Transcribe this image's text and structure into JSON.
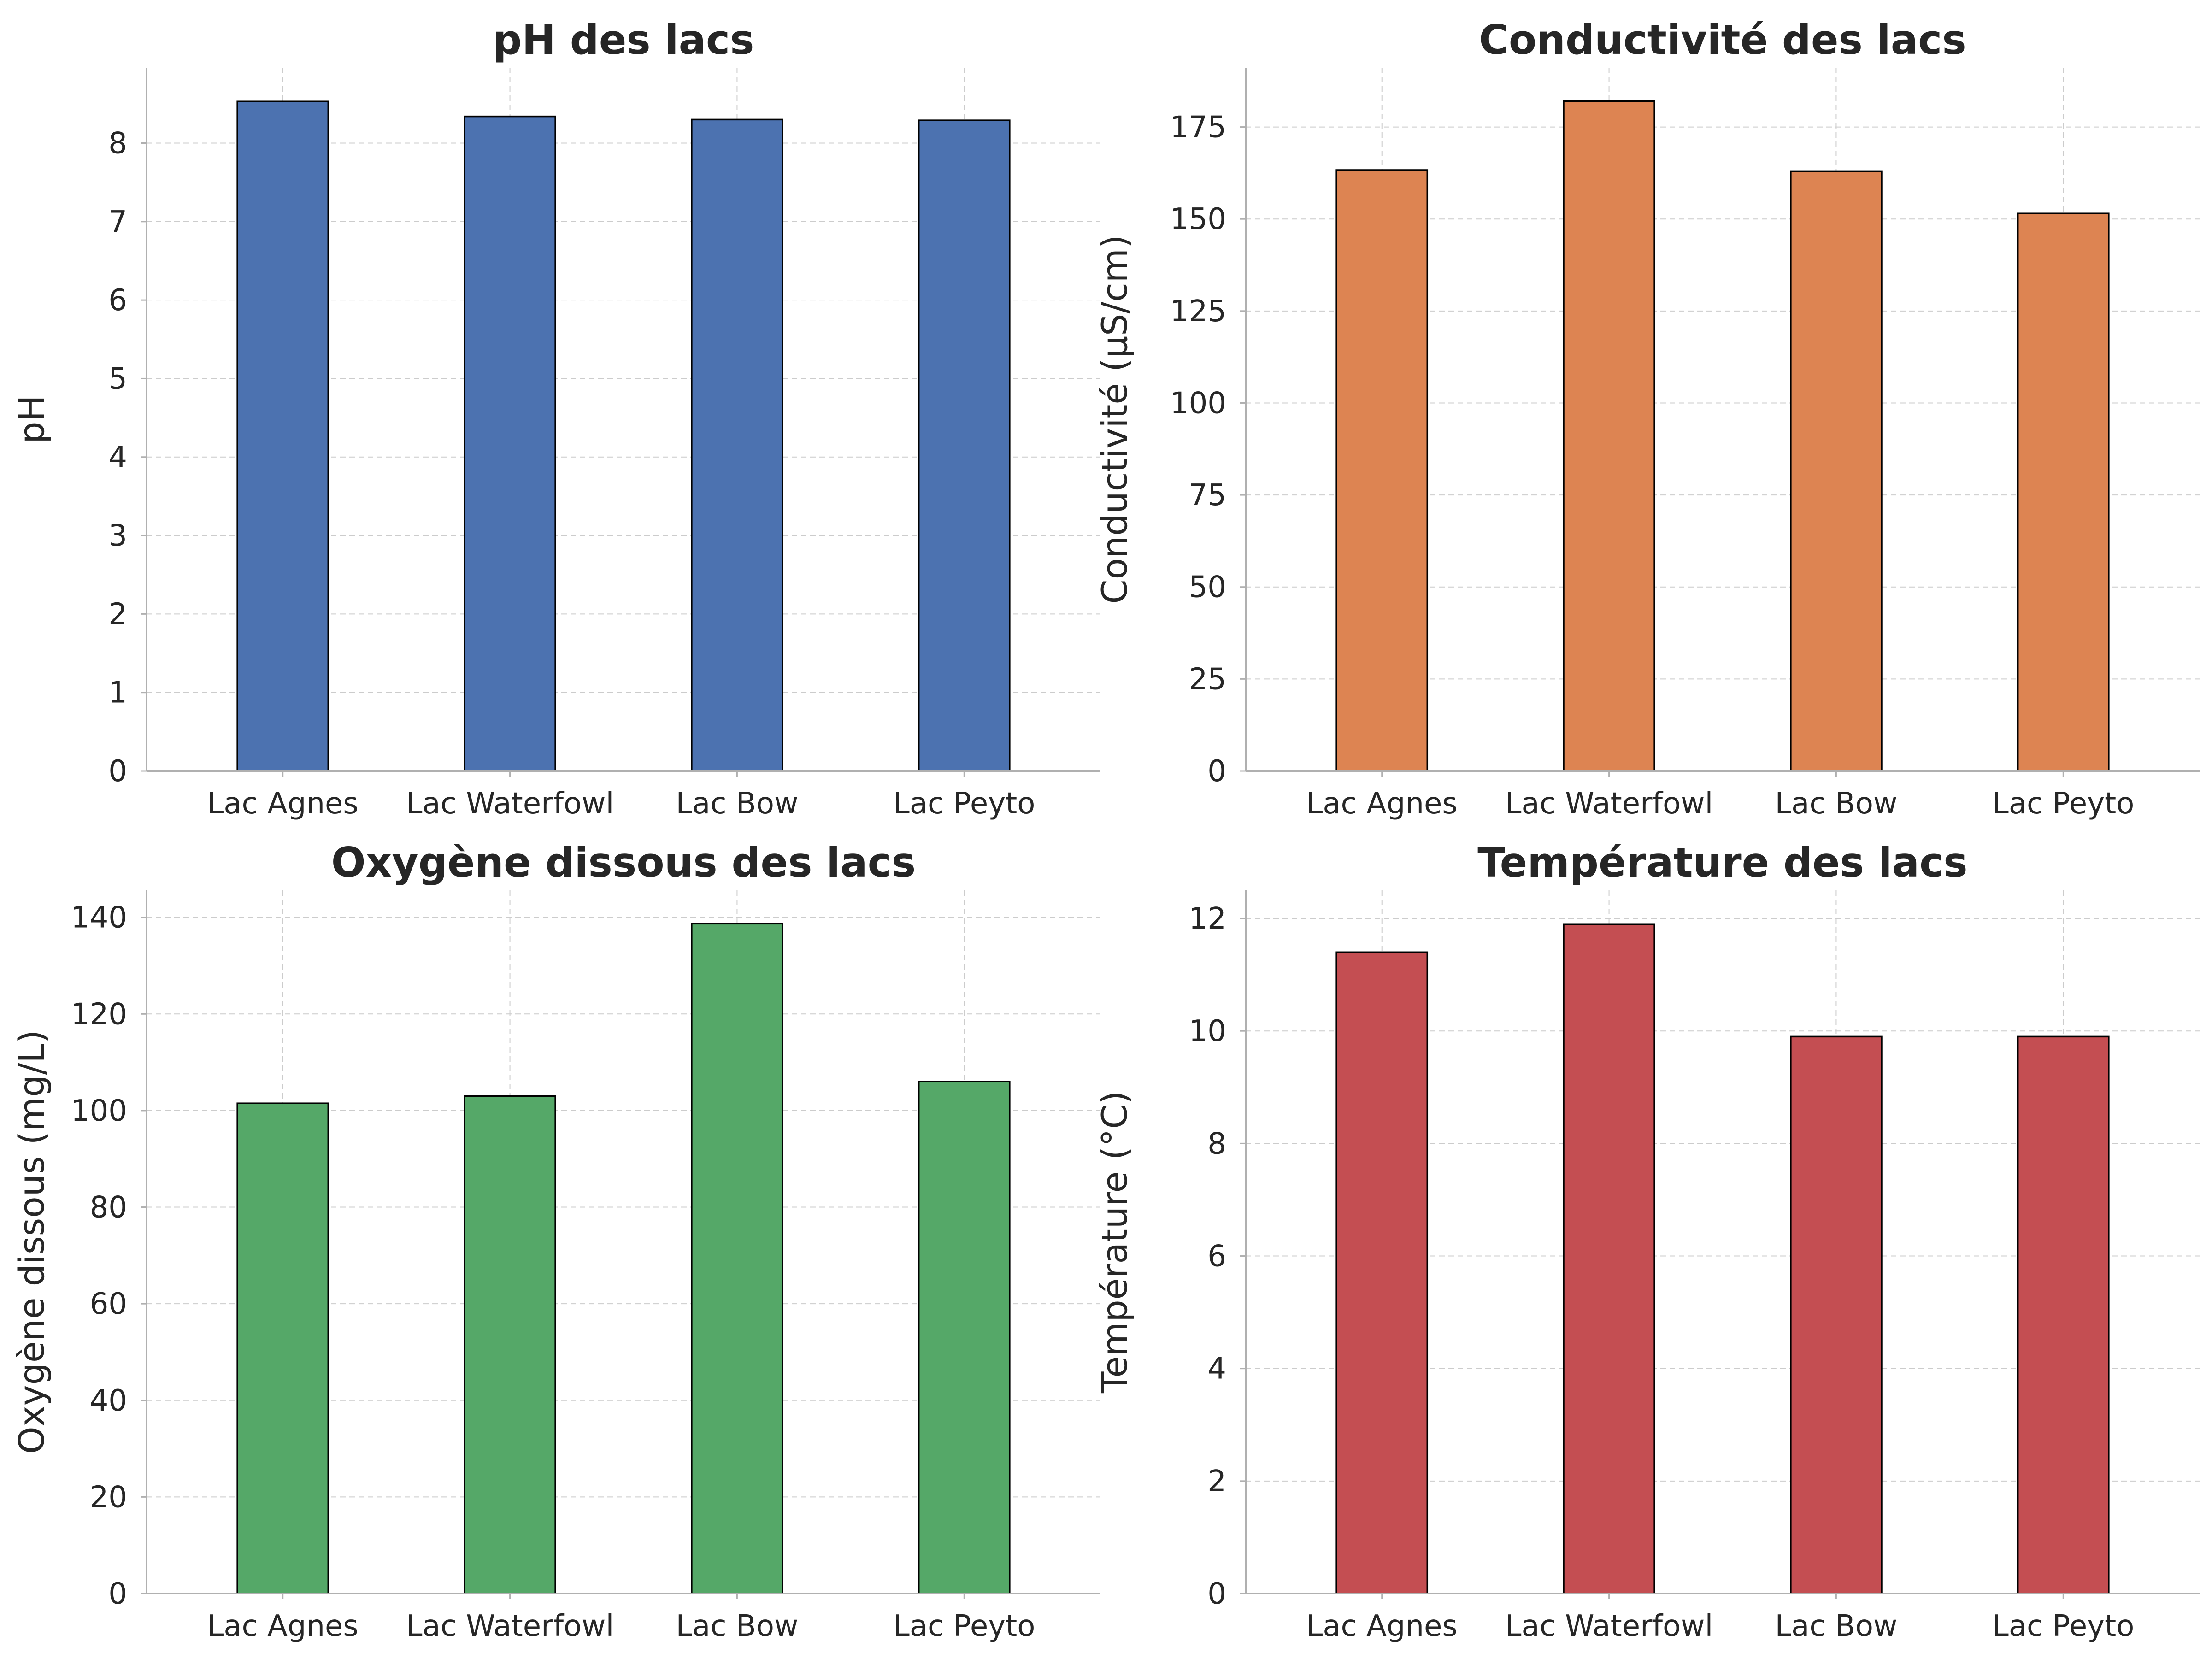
{
  "chart_data": [
    {
      "type": "bar",
      "title": "pH des lacs",
      "xlabel": "",
      "ylabel": "pH",
      "categories": [
        "Lac Agnes",
        "Lac Waterfowl",
        "Lac Bow",
        "Lac Peyto"
      ],
      "values": [
        8.53,
        8.34,
        8.3,
        8.29
      ],
      "ylim": [
        0,
        8.96
      ],
      "yticks": [
        0,
        1,
        2,
        3,
        4,
        5,
        6,
        7,
        8
      ],
      "color": "#4c72b0",
      "grid": true
    },
    {
      "type": "bar",
      "title": "Conductivité des lacs",
      "xlabel": "",
      "ylabel": "Conductivité (µS/cm)",
      "categories": [
        "Lac Agnes",
        "Lac Waterfowl",
        "Lac Bow",
        "Lac Peyto"
      ],
      "values": [
        163.3,
        182,
        163,
        151.5
      ],
      "ylim": [
        0,
        191.1
      ],
      "yticks": [
        0,
        25,
        50,
        75,
        100,
        125,
        150,
        175
      ],
      "color": "#dd8452",
      "grid": true
    },
    {
      "type": "bar",
      "title": "Oxygène dissous des lacs",
      "xlabel": "",
      "ylabel": "Oxygène dissous (mg/L)",
      "categories": [
        "Lac Agnes",
        "Lac Waterfowl",
        "Lac Bow",
        "Lac Peyto"
      ],
      "values": [
        101.5,
        103,
        138.7,
        106
      ],
      "ylim": [
        0,
        145.6
      ],
      "yticks": [
        0,
        20,
        40,
        60,
        80,
        100,
        120,
        140
      ],
      "color": "#55a868",
      "grid": true
    },
    {
      "type": "bar",
      "title": "Température des lacs",
      "xlabel": "",
      "ylabel": "Température (°C)",
      "categories": [
        "Lac Agnes",
        "Lac Waterfowl",
        "Lac Bow",
        "Lac Peyto"
      ],
      "values": [
        11.4,
        11.9,
        9.9,
        9.9
      ],
      "ylim": [
        0,
        12.5
      ],
      "yticks": [
        0,
        2,
        4,
        6,
        8,
        10,
        12
      ],
      "color": "#c44e52",
      "grid": true
    }
  ]
}
